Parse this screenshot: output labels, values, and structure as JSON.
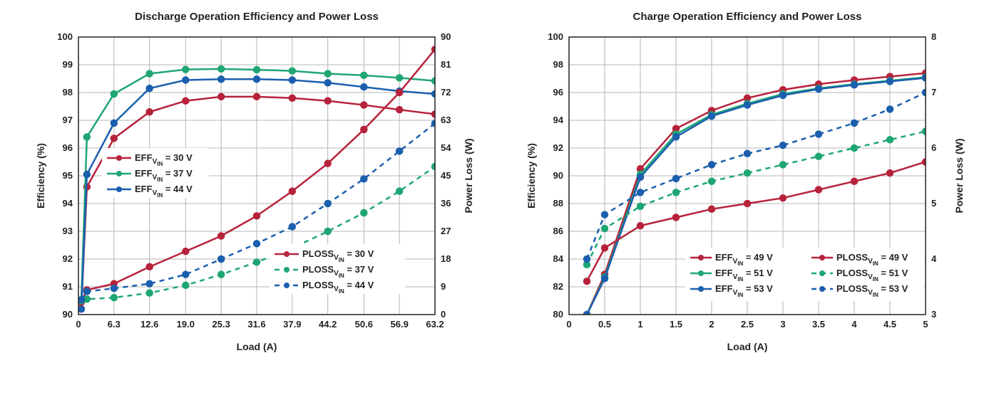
{
  "colors": {
    "red": "#b7223b",
    "green": "#1fa673",
    "blue": "#1b5fae",
    "grid": "#b5b5b5",
    "axis": "#222222",
    "bg": "#ffffff"
  },
  "marker_radius": 4.5,
  "line_width": 2.5,
  "dash": "7 6",
  "left": {
    "title": "Discharge Operation Efficiency and Power Loss",
    "xlabel": "Load (A)",
    "ylabel_left": "Efficiency (%)",
    "ylabel_right": "Power Loss (W)",
    "x_ticks": [
      0,
      6.3,
      12.6,
      19.0,
      25.3,
      31.6,
      37.9,
      44.2,
      50.6,
      56.9,
      63.2
    ],
    "x_tick_labels": [
      "0",
      "6.3",
      "12.6",
      "19.0",
      "25.3",
      "31.6",
      "37.9",
      "44.2",
      "50.6",
      "56.9",
      "63.2"
    ],
    "xlim": [
      0,
      63.2
    ],
    "yl_lim": [
      90,
      100
    ],
    "yl_ticks": [
      90,
      91,
      92,
      93,
      94,
      95,
      96,
      97,
      98,
      99,
      100
    ],
    "yr_lim": [
      0,
      90
    ],
    "yr_ticks": [
      0,
      9,
      18,
      27,
      36,
      45,
      54,
      63,
      72,
      81,
      90
    ],
    "x_data": [
      0.5,
      1.5,
      6.3,
      12.6,
      19.0,
      25.3,
      31.6,
      37.9,
      44.2,
      50.6,
      56.9,
      63.2
    ],
    "eff_30": [
      90.2,
      94.6,
      96.35,
      97.3,
      97.7,
      97.85,
      97.85,
      97.8,
      97.7,
      97.55,
      97.38,
      97.22
    ],
    "eff_37": [
      90.5,
      96.4,
      97.95,
      98.68,
      98.83,
      98.85,
      98.82,
      98.78,
      98.68,
      98.62,
      98.53,
      98.42
    ],
    "eff_44": [
      90.2,
      95.05,
      96.9,
      98.15,
      98.45,
      98.48,
      98.48,
      98.45,
      98.35,
      98.2,
      98.05,
      97.95
    ],
    "ploss_30": [
      4.0,
      8.0,
      10.0,
      15.5,
      20.5,
      25.5,
      32.0,
      40.0,
      49.0,
      60.0,
      72.0,
      86.0
    ],
    "ploss_37": [
      4.5,
      5.0,
      5.5,
      7.0,
      9.5,
      13.0,
      17.0,
      21.5,
      27.0,
      33.0,
      40.0,
      48.0
    ],
    "ploss_44": [
      4.8,
      7.5,
      8.5,
      10.0,
      13.0,
      18.0,
      23.0,
      28.5,
      36.0,
      44.0,
      53.0,
      62.0
    ],
    "legend_eff": [
      {
        "label": "EFF",
        "sub": "V",
        "sub2": "IN",
        "rest": " = 30 V",
        "color": "red"
      },
      {
        "label": "EFF",
        "sub": "V",
        "sub2": "IN",
        "rest": " = 37 V",
        "color": "green"
      },
      {
        "label": "EFF",
        "sub": "V",
        "sub2": "IN",
        "rest": " = 44 V",
        "color": "blue"
      }
    ],
    "legend_ploss": [
      {
        "label": "PLOSS",
        "sub": "V",
        "sub2": "IN",
        "rest": " = 30 V",
        "color": "red",
        "dash": false
      },
      {
        "label": "PLOSS",
        "sub": "V",
        "sub2": "IN",
        "rest": " = 37 V",
        "color": "green",
        "dash": true
      },
      {
        "label": "PLOSS",
        "sub": "V",
        "sub2": "IN",
        "rest": " = 44 V",
        "color": "blue",
        "dash": true
      }
    ]
  },
  "right": {
    "title": "Charge Operation Efficiency and Power Loss",
    "xlabel": "Load (A)",
    "ylabel_left": "Efficiency (%)",
    "ylabel_right": "Power Loss (W)",
    "x_ticks": [
      0,
      0.5,
      1,
      1.5,
      2,
      2.5,
      3,
      3.5,
      4,
      4.5,
      5
    ],
    "x_tick_labels": [
      "0",
      "0.5",
      "1",
      "1.5",
      "2",
      "2.5",
      "3",
      "3.5",
      "4",
      "4.5",
      "5"
    ],
    "xlim": [
      0,
      5
    ],
    "yl_lim": [
      80,
      100
    ],
    "yl_ticks": [
      80,
      82,
      84,
      86,
      88,
      90,
      92,
      94,
      96,
      98,
      100
    ],
    "yr_lim": [
      3,
      8
    ],
    "yr_ticks": [
      3,
      3.5,
      4,
      4.5,
      5,
      5.5,
      6,
      6.5,
      7,
      7.5,
      8
    ],
    "yr_tick_labels": [
      "3",
      "",
      "4",
      "",
      "5",
      "",
      "6",
      "",
      "7",
      "",
      "8"
    ],
    "x_data": [
      0.25,
      0.5,
      1.0,
      1.5,
      2.0,
      2.5,
      3.0,
      3.5,
      4.0,
      4.5,
      5.0
    ],
    "eff_49": [
      80.0,
      82.9,
      90.5,
      93.4,
      94.7,
      95.6,
      96.2,
      96.6,
      96.9,
      97.15,
      97.4
    ],
    "eff_51": [
      80.0,
      82.7,
      90.1,
      93.0,
      94.4,
      95.2,
      95.9,
      96.3,
      96.6,
      96.85,
      97.1
    ],
    "eff_53": [
      80.0,
      82.6,
      89.9,
      92.8,
      94.3,
      95.1,
      95.8,
      96.25,
      96.55,
      96.8,
      97.05
    ],
    "ploss_49": [
      3.6,
      4.2,
      4.6,
      4.75,
      4.9,
      5.0,
      5.1,
      5.25,
      5.4,
      5.55,
      5.75
    ],
    "ploss_51": [
      3.9,
      4.55,
      4.95,
      5.2,
      5.4,
      5.55,
      5.7,
      5.85,
      6.0,
      6.15,
      6.3
    ],
    "ploss_53": [
      4.0,
      4.8,
      5.2,
      5.45,
      5.7,
      5.9,
      6.05,
      6.25,
      6.45,
      6.7,
      7.0
    ],
    "legend": [
      {
        "label": "EFF",
        "sub": "V",
        "sub2": "IN",
        "rest": " = 49 V",
        "color": "red",
        "dash": false
      },
      {
        "label": "EFF",
        "sub": "V",
        "sub2": "IN",
        "rest": " = 51 V",
        "color": "green",
        "dash": false
      },
      {
        "label": "EFF",
        "sub": "V",
        "sub2": "IN",
        "rest": " = 53 V",
        "color": "blue",
        "dash": false
      },
      {
        "label": "PLOSS",
        "sub": "V",
        "sub2": "IN",
        "rest": " = 49 V",
        "color": "red",
        "dash": false
      },
      {
        "label": "PLOSS",
        "sub": "V",
        "sub2": "IN",
        "rest": " = 51 V",
        "color": "green",
        "dash": true
      },
      {
        "label": "PLOSS",
        "sub": "V",
        "sub2": "IN",
        "rest": " = 53 V",
        "color": "blue",
        "dash": true
      }
    ]
  }
}
